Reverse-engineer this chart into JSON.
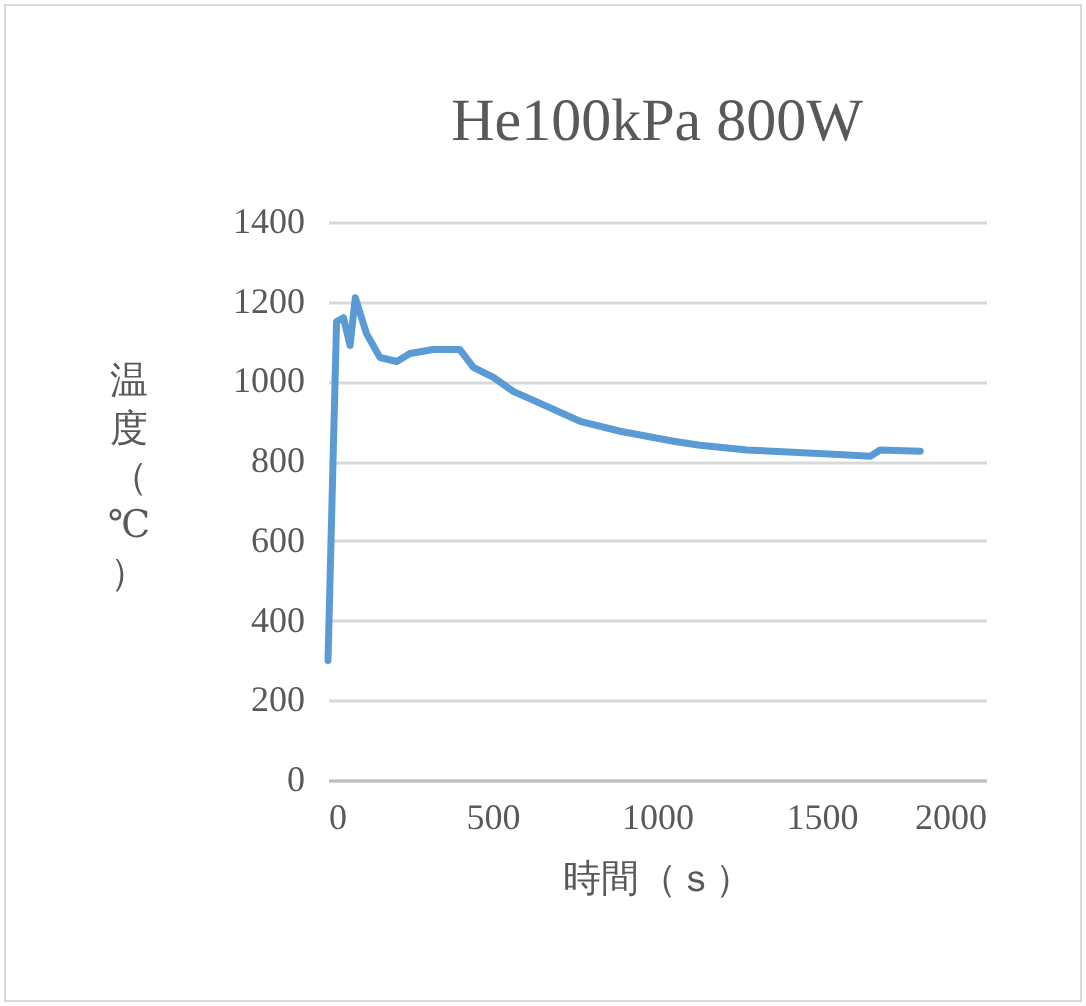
{
  "chart_data": {
    "type": "line",
    "title": "He100kPa 800W",
    "xlabel": "時間（ｓ）",
    "ylabel": "温度（℃）",
    "x": [
      0,
      26,
      47,
      67,
      83,
      117,
      158,
      209,
      249,
      320,
      401,
      442,
      503,
      563,
      645,
      766,
      888,
      1050,
      1131,
      1273,
      1537,
      1648,
      1678,
      1800
    ],
    "series": [
      {
        "color": "#5b9bd5",
        "values": [
          300,
          1150,
          1160,
          1090,
          1210,
          1120,
          1060,
          1050,
          1070,
          1080,
          1080,
          1035,
          1010,
          975,
          945,
          900,
          875,
          850,
          840,
          828,
          817,
          812,
          828,
          825
        ]
      }
    ],
    "xlim": [
      0,
      2000
    ],
    "xticks": [
      0,
      500,
      1000,
      1500,
      2000
    ],
    "ylim": [
      0,
      1400
    ],
    "yticks": [
      0,
      200,
      400,
      600,
      800,
      1000,
      1200,
      1400
    ],
    "grid": "y"
  }
}
